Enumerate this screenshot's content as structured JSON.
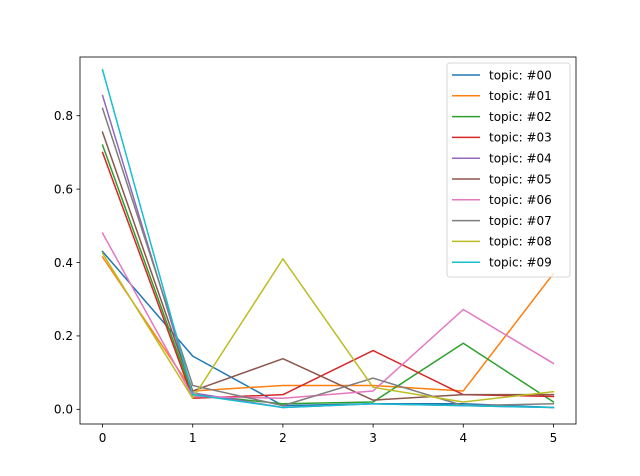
{
  "chart_data": {
    "type": "line",
    "x": [
      0,
      1,
      2,
      3,
      4,
      5
    ],
    "xlim": [
      -0.25,
      5.25
    ],
    "ylim": [
      -0.04,
      0.96
    ],
    "xticks": [
      0,
      1,
      2,
      3,
      4,
      5
    ],
    "yticks": [
      0.0,
      0.2,
      0.4,
      0.6,
      0.8
    ],
    "xtick_labels": [
      "0",
      "1",
      "2",
      "3",
      "4",
      "5"
    ],
    "ytick_labels": [
      "0.0",
      "0.2",
      "0.4",
      "0.6",
      "0.8"
    ],
    "title": "",
    "xlabel": "",
    "ylabel": "",
    "grid": false,
    "legend_position": "top-right",
    "series": [
      {
        "name": "topic: #00",
        "color": "#1f77b4",
        "values": [
          0.43,
          0.145,
          0.01,
          0.015,
          0.015,
          0.005
        ]
      },
      {
        "name": "topic: #01",
        "color": "#ff7f0e",
        "values": [
          0.415,
          0.05,
          0.065,
          0.065,
          0.05,
          0.37
        ]
      },
      {
        "name": "topic: #02",
        "color": "#2ca02c",
        "values": [
          0.72,
          0.04,
          0.015,
          0.02,
          0.18,
          0.02
        ]
      },
      {
        "name": "topic: #03",
        "color": "#d62728",
        "values": [
          0.7,
          0.03,
          0.04,
          0.16,
          0.04,
          0.035
        ]
      },
      {
        "name": "topic: #04",
        "color": "#9467bd",
        "values": [
          0.855,
          0.045,
          0.005,
          0.015,
          0.01,
          0.005
        ]
      },
      {
        "name": "topic: #05",
        "color": "#8c564b",
        "values": [
          0.755,
          0.05,
          0.138,
          0.025,
          0.04,
          0.04
        ]
      },
      {
        "name": "topic: #06",
        "color": "#e377c2",
        "values": [
          0.48,
          0.035,
          0.03,
          0.05,
          0.272,
          0.125
        ]
      },
      {
        "name": "topic: #07",
        "color": "#7f7f7f",
        "values": [
          0.82,
          0.065,
          0.01,
          0.085,
          0.01,
          0.015
        ]
      },
      {
        "name": "topic: #08",
        "color": "#bcbd22",
        "values": [
          0.425,
          0.03,
          0.41,
          0.06,
          0.02,
          0.048
        ]
      },
      {
        "name": "topic: #09",
        "color": "#17becf",
        "values": [
          0.925,
          0.04,
          0.005,
          0.015,
          0.01,
          0.005
        ]
      }
    ]
  }
}
